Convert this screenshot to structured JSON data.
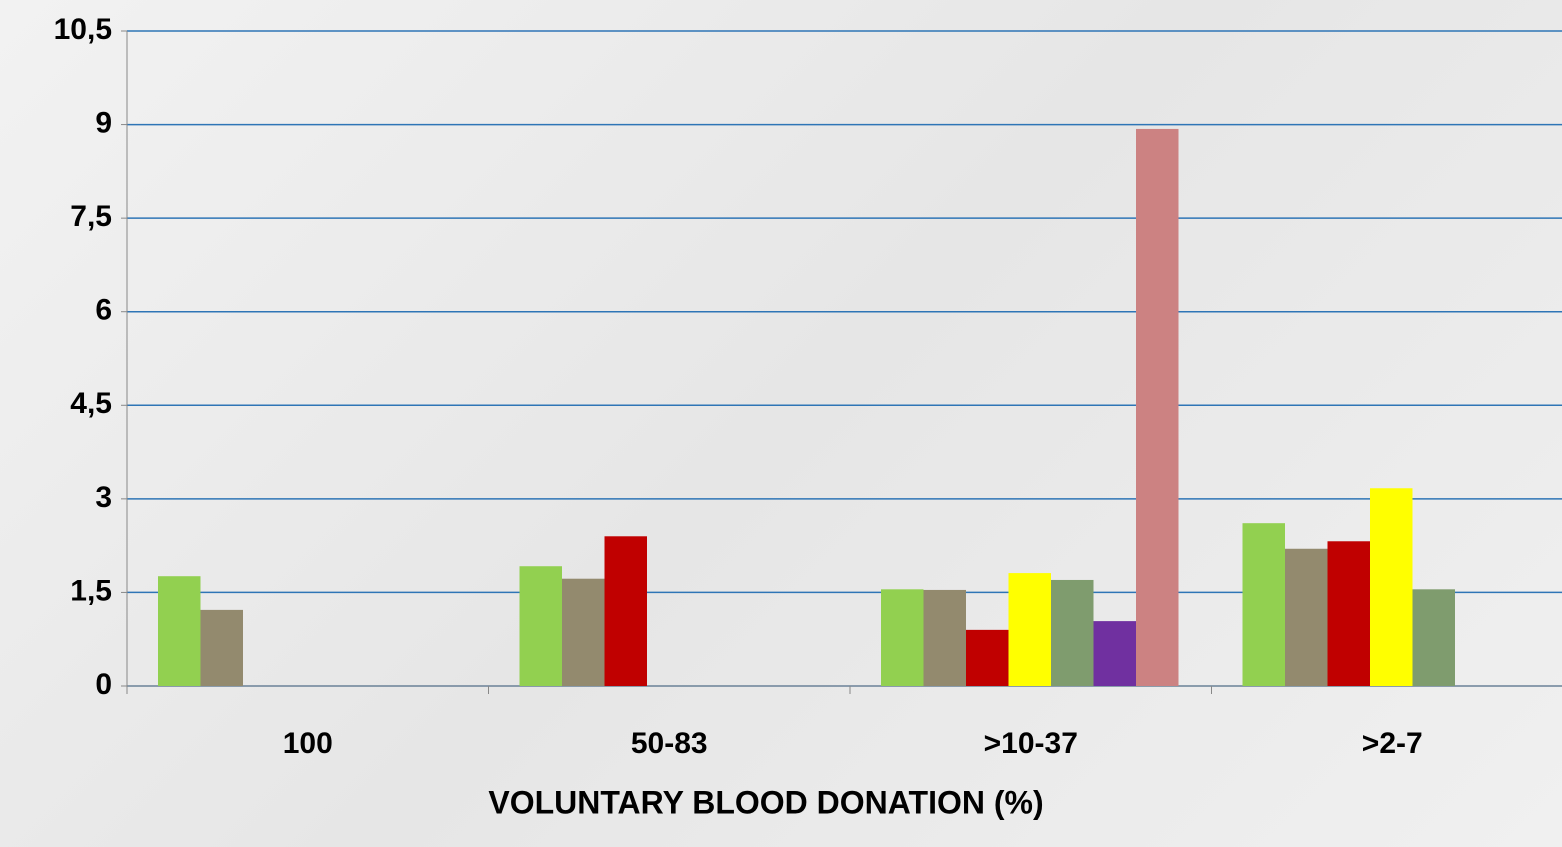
{
  "chart_data": {
    "type": "bar",
    "x_label": "VOLUNTARY BLOOD DONATION  (%)",
    "categories": [
      "100",
      "50-83",
      ">10-37",
      ">2-7"
    ],
    "series": [
      {
        "color": "#92d050",
        "values": [
          1.76,
          1.92,
          1.55,
          2.61
        ]
      },
      {
        "color": "#938a6e",
        "values": [
          1.22,
          1.72,
          1.54,
          2.2
        ]
      },
      {
        "color": "#c00000",
        "values": [
          null,
          2.4,
          0.9,
          2.32
        ]
      },
      {
        "color": "#ffff00",
        "values": [
          null,
          null,
          1.81,
          3.17
        ]
      },
      {
        "color": "#7f9c6e",
        "values": [
          null,
          null,
          1.7,
          1.55
        ]
      },
      {
        "color": "#7030a0",
        "values": [
          null,
          null,
          1.04,
          null
        ]
      },
      {
        "color": "#cc8282",
        "values": [
          null,
          null,
          8.93,
          null
        ]
      }
    ],
    "ylim": [
      0,
      10.5
    ],
    "yticks": [
      0,
      {
        "value": 1.5,
        "label": "1,5"
      },
      3,
      {
        "value": 4.5,
        "label": "4,5"
      },
      6,
      {
        "value": 7.5,
        "label": "7,5"
      },
      9,
      {
        "value": 10.5,
        "label": "10,5"
      }
    ],
    "grid": true
  }
}
